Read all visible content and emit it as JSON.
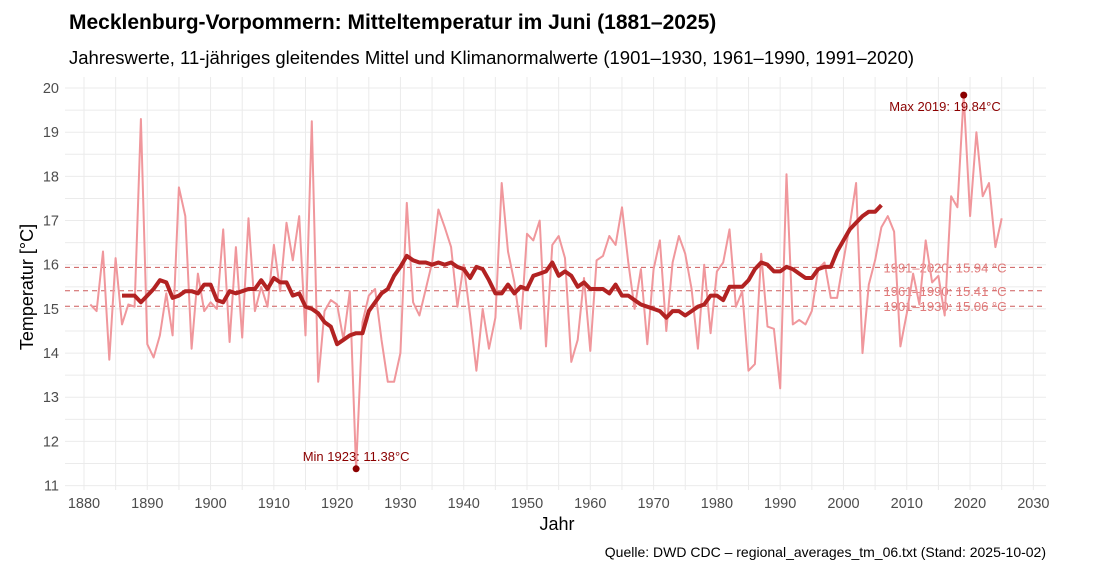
{
  "chart_data": {
    "type": "line",
    "title": "Mecklenburg-Vorpommern: Mitteltemperatur im Juni (1881–2025)",
    "subtitle": "Jahreswerte, 11-jähriges gleitendes Mittel und Klimanormalwerte (1901–1930, 1961–1990, 1991–2020)",
    "caption": "Quelle: DWD CDC – regional_averages_tm_06.txt (Stand: 2025-10-02)",
    "xlabel": "Jahr",
    "ylabel": "Temperatur [°C]",
    "xlim": [
      1877,
      2032
    ],
    "ylim": [
      10.9,
      20.25
    ],
    "xticks": [
      1880,
      1890,
      1900,
      1910,
      1920,
      1930,
      1940,
      1950,
      1960,
      1970,
      1980,
      1990,
      2000,
      2010,
      2020,
      2030
    ],
    "yticks": [
      11,
      12,
      13,
      14,
      15,
      16,
      17,
      18,
      19,
      20
    ],
    "grid": true,
    "colors": {
      "annual": "#f0979c",
      "smooth": "#b22222",
      "normals": "#cd5c5c",
      "normal_labels": "#e07b7b",
      "extremes": "#8b0000"
    },
    "series": [
      {
        "name": "Jahreswerte",
        "x_start": 1881,
        "values": [
          15.1,
          14.95,
          16.3,
          13.85,
          16.15,
          14.65,
          15.1,
          15.05,
          19.3,
          14.2,
          13.9,
          14.4,
          15.35,
          14.4,
          17.75,
          17.1,
          14.1,
          15.8,
          14.95,
          15.15,
          15.0,
          16.8,
          14.25,
          16.4,
          14.35,
          17.05,
          14.95,
          15.5,
          15.05,
          16.45,
          15.4,
          16.95,
          16.1,
          17.1,
          14.4,
          19.25,
          13.35,
          14.95,
          15.2,
          15.1,
          14.3,
          15.4,
          11.38,
          14.7,
          15.3,
          15.45,
          14.3,
          13.35,
          13.35,
          14.0,
          17.4,
          15.15,
          14.85,
          15.45,
          16.05,
          17.25,
          16.85,
          16.4,
          15.05,
          16.0,
          14.85,
          13.6,
          15.0,
          14.1,
          14.8,
          17.85,
          16.3,
          15.6,
          14.55,
          16.7,
          16.55,
          17.0,
          14.15,
          16.45,
          16.65,
          16.15,
          13.8,
          14.3,
          15.7,
          14.05,
          16.1,
          16.2,
          16.65,
          16.45,
          17.3,
          16.05,
          15.0,
          15.9,
          14.2,
          15.9,
          16.55,
          14.5,
          16.05,
          16.65,
          16.25,
          15.45,
          14.1,
          16.0,
          14.45,
          15.85,
          16.05,
          16.8,
          15.05,
          15.4,
          13.6,
          13.75,
          16.25,
          14.6,
          14.55,
          13.2,
          18.05,
          14.65,
          14.75,
          14.65,
          14.95,
          15.9,
          16.05,
          15.25,
          15.25,
          16.1,
          16.9,
          17.85,
          14.0,
          15.55,
          16.1,
          16.85,
          17.1,
          16.75,
          14.15,
          14.9,
          15.8,
          15.1,
          16.55,
          15.6,
          15.75,
          14.85,
          17.55,
          17.3,
          19.84,
          17.1,
          19.0,
          17.55,
          17.85,
          16.4,
          17.05
        ]
      },
      {
        "name": "11-jähriges gleitendes Mittel",
        "x_start": 1886,
        "values": [
          15.3,
          15.3,
          15.3,
          15.15,
          15.3,
          15.45,
          15.65,
          15.6,
          15.25,
          15.3,
          15.4,
          15.4,
          15.35,
          15.55,
          15.55,
          15.2,
          15.15,
          15.4,
          15.35,
          15.4,
          15.45,
          15.45,
          15.65,
          15.45,
          15.7,
          15.6,
          15.6,
          15.3,
          15.35,
          15.05,
          15.0,
          14.9,
          14.7,
          14.6,
          14.2,
          14.3,
          14.4,
          14.45,
          14.45,
          14.95,
          15.15,
          15.35,
          15.45,
          15.75,
          15.95,
          16.2,
          16.1,
          16.05,
          16.05,
          16.0,
          16.05,
          16.0,
          16.05,
          15.95,
          15.9,
          15.7,
          15.95,
          15.9,
          15.65,
          15.35,
          15.35,
          15.55,
          15.35,
          15.5,
          15.45,
          15.75,
          15.8,
          15.85,
          16.05,
          15.75,
          15.85,
          15.75,
          15.5,
          15.6,
          15.45,
          15.45,
          15.45,
          15.35,
          15.55,
          15.3,
          15.3,
          15.2,
          15.1,
          15.05,
          15.0,
          14.95,
          14.8,
          14.95,
          14.95,
          14.85,
          14.95,
          15.05,
          15.1,
          15.3,
          15.3,
          15.2,
          15.5,
          15.5,
          15.5,
          15.65,
          15.9,
          16.05,
          16.0,
          15.85,
          15.85,
          15.95,
          15.9,
          15.8,
          15.7,
          15.7,
          15.9,
          15.95,
          15.95,
          16.3,
          16.55,
          16.8,
          16.95,
          17.1,
          17.2,
          17.2,
          17.35
        ]
      }
    ],
    "normals": [
      {
        "period": "1991–2020",
        "value": 15.94,
        "label": "1991–2020: 15.94 °C"
      },
      {
        "period": "1961–1990",
        "value": 15.41,
        "label": "1961–1990: 15.41 °C"
      },
      {
        "period": "1901–1930",
        "value": 15.06,
        "label": "1901–1930: 15.06 °C"
      }
    ],
    "annotations": [
      {
        "kind": "max",
        "year": 2019,
        "value": 19.84,
        "label": "Max 2019: 19.84°C"
      },
      {
        "kind": "min",
        "year": 1923,
        "value": 11.38,
        "label": "Min 1923: 11.38°C"
      }
    ]
  }
}
